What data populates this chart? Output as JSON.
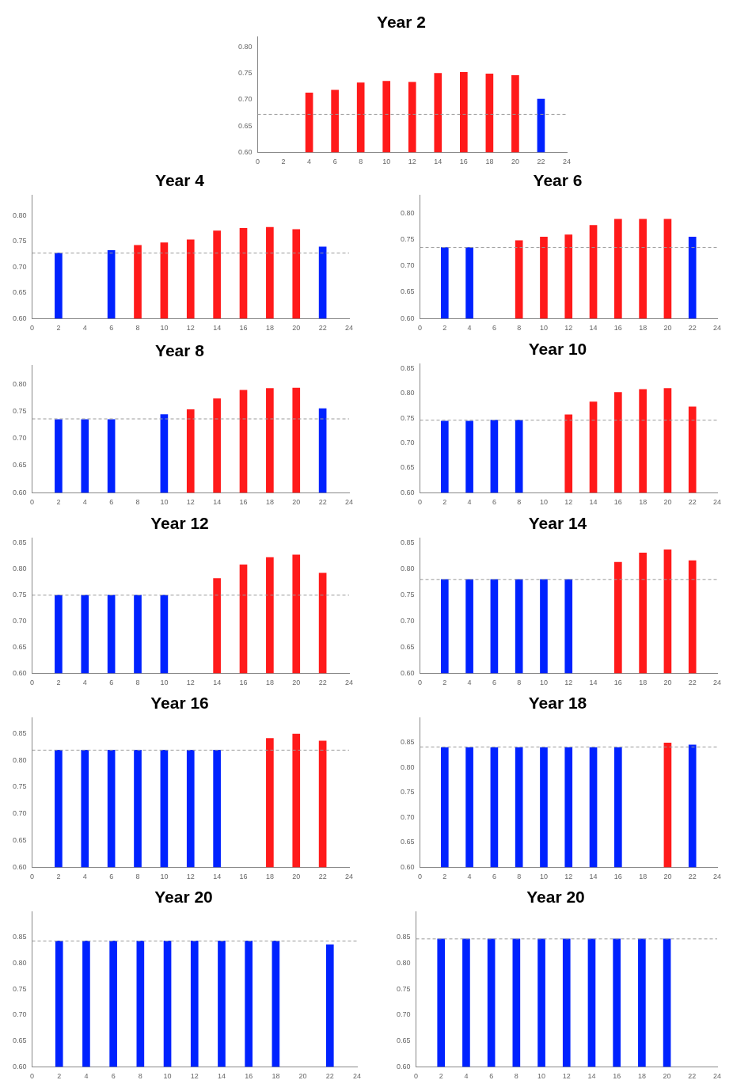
{
  "chart_data": [
    {
      "type": "bar",
      "title": "Year 2",
      "x": [
        4,
        6,
        8,
        10,
        12,
        14,
        16,
        18,
        20,
        22
      ],
      "values": [
        0.713,
        0.718,
        0.732,
        0.735,
        0.733,
        0.75,
        0.752,
        0.749,
        0.746,
        0.701
      ],
      "colors": [
        "#ff1a1a",
        "#ff1a1a",
        "#ff1a1a",
        "#ff1a1a",
        "#ff1a1a",
        "#ff1a1a",
        "#ff1a1a",
        "#ff1a1a",
        "#ff1a1a",
        "#0022ff"
      ],
      "xlim": [
        0,
        24
      ],
      "xticks": [
        0,
        2,
        4,
        6,
        8,
        10,
        12,
        14,
        16,
        18,
        20,
        22,
        24
      ],
      "ylim": [
        0.6,
        0.82
      ],
      "yticks": [
        {
          "value": 0.6,
          "label": "0.60"
        },
        {
          "value": 0.65,
          "label": "0.65"
        },
        {
          "value": 0.7,
          "label": "0.70"
        },
        {
          "value": 0.75,
          "label": "0.75"
        },
        {
          "value": 0.8,
          "label": "0.80"
        }
      ],
      "ref_lines": [
        {
          "axis": "y",
          "value": 0.672,
          "color": "#999999",
          "line_style": "dashed"
        }
      ]
    },
    {
      "type": "bar",
      "title": "Year 4",
      "x": [
        2,
        6,
        8,
        10,
        12,
        14,
        16,
        18,
        20,
        22
      ],
      "values": [
        0.727,
        0.732,
        0.742,
        0.747,
        0.753,
        0.77,
        0.775,
        0.777,
        0.773,
        0.739
      ],
      "colors": [
        "#0022ff",
        "#0022ff",
        "#ff1a1a",
        "#ff1a1a",
        "#ff1a1a",
        "#ff1a1a",
        "#ff1a1a",
        "#ff1a1a",
        "#ff1a1a",
        "#0022ff"
      ],
      "xlim": [
        0,
        24
      ],
      "xticks": [
        0,
        2,
        4,
        6,
        8,
        10,
        12,
        14,
        16,
        18,
        20,
        22,
        24
      ],
      "ylim": [
        0.6,
        0.84
      ],
      "yticks": [
        {
          "value": 0.6,
          "label": "0.60"
        },
        {
          "value": 0.65,
          "label": "0.65"
        },
        {
          "value": 0.7,
          "label": "0.70"
        },
        {
          "value": 0.75,
          "label": "0.75"
        },
        {
          "value": 0.8,
          "label": "0.80"
        }
      ],
      "ref_lines": [
        {
          "axis": "y",
          "value": 0.727,
          "color": "#999999",
          "line_style": "dashed"
        }
      ]
    },
    {
      "type": "bar",
      "title": "Year 6",
      "x": [
        2,
        4,
        8,
        10,
        12,
        14,
        16,
        18,
        20,
        22
      ],
      "values": [
        0.735,
        0.735,
        0.748,
        0.755,
        0.759,
        0.777,
        0.789,
        0.789,
        0.789,
        0.755
      ],
      "colors": [
        "#0022ff",
        "#0022ff",
        "#ff1a1a",
        "#ff1a1a",
        "#ff1a1a",
        "#ff1a1a",
        "#ff1a1a",
        "#ff1a1a",
        "#ff1a1a",
        "#0022ff"
      ],
      "xlim": [
        0,
        24
      ],
      "xticks": [
        0,
        2,
        4,
        6,
        8,
        10,
        12,
        14,
        16,
        18,
        20,
        22,
        24
      ],
      "ylim": [
        0.6,
        0.835
      ],
      "yticks": [
        {
          "value": 0.6,
          "label": "0.60"
        },
        {
          "value": 0.65,
          "label": "0.65"
        },
        {
          "value": 0.7,
          "label": "0.70"
        },
        {
          "value": 0.75,
          "label": "0.75"
        },
        {
          "value": 0.8,
          "label": "0.80"
        }
      ],
      "ref_lines": [
        {
          "axis": "y",
          "value": 0.735,
          "color": "#999999",
          "line_style": "dashed"
        }
      ]
    },
    {
      "type": "bar",
      "title": "Year 8",
      "x": [
        2,
        4,
        6,
        10,
        12,
        14,
        16,
        18,
        20,
        22
      ],
      "values": [
        0.735,
        0.735,
        0.735,
        0.744,
        0.753,
        0.773,
        0.789,
        0.792,
        0.793,
        0.755
      ],
      "colors": [
        "#0022ff",
        "#0022ff",
        "#0022ff",
        "#0022ff",
        "#ff1a1a",
        "#ff1a1a",
        "#ff1a1a",
        "#ff1a1a",
        "#ff1a1a",
        "#0022ff"
      ],
      "xlim": [
        0,
        24
      ],
      "xticks": [
        0,
        2,
        4,
        6,
        8,
        10,
        12,
        14,
        16,
        18,
        20,
        22,
        24
      ],
      "ylim": [
        0.6,
        0.835
      ],
      "yticks": [
        {
          "value": 0.6,
          "label": "0.60"
        },
        {
          "value": 0.65,
          "label": "0.65"
        },
        {
          "value": 0.7,
          "label": "0.70"
        },
        {
          "value": 0.75,
          "label": "0.75"
        },
        {
          "value": 0.8,
          "label": "0.80"
        }
      ],
      "ref_lines": [
        {
          "axis": "y",
          "value": 0.736,
          "color": "#999999",
          "line_style": "dashed"
        }
      ]
    },
    {
      "type": "bar",
      "title": "Year 10",
      "x": [
        2,
        4,
        6,
        8,
        12,
        14,
        16,
        18,
        20,
        22
      ],
      "values": [
        0.744,
        0.744,
        0.746,
        0.746,
        0.757,
        0.783,
        0.802,
        0.808,
        0.81,
        0.773
      ],
      "colors": [
        "#0022ff",
        "#0022ff",
        "#0022ff",
        "#0022ff",
        "#ff1a1a",
        "#ff1a1a",
        "#ff1a1a",
        "#ff1a1a",
        "#ff1a1a",
        "#ff1a1a"
      ],
      "xlim": [
        0,
        24
      ],
      "xticks": [
        0,
        2,
        4,
        6,
        8,
        10,
        12,
        14,
        16,
        18,
        20,
        22,
        24
      ],
      "ylim": [
        0.6,
        0.86
      ],
      "yticks": [
        {
          "value": 0.6,
          "label": "0.60"
        },
        {
          "value": 0.65,
          "label": "0.65"
        },
        {
          "value": 0.7,
          "label": "0.70"
        },
        {
          "value": 0.75,
          "label": "0.75"
        },
        {
          "value": 0.8,
          "label": "0.80"
        },
        {
          "value": 0.85,
          "label": "0.85"
        }
      ],
      "ref_lines": [
        {
          "axis": "y",
          "value": 0.746,
          "color": "#999999",
          "line_style": "dashed"
        }
      ]
    },
    {
      "type": "bar",
      "title": "Year 12",
      "x": [
        2,
        4,
        6,
        8,
        10,
        14,
        16,
        18,
        20,
        22
      ],
      "values": [
        0.75,
        0.75,
        0.75,
        0.75,
        0.75,
        0.782,
        0.808,
        0.822,
        0.827,
        0.792
      ],
      "colors": [
        "#0022ff",
        "#0022ff",
        "#0022ff",
        "#0022ff",
        "#0022ff",
        "#ff1a1a",
        "#ff1a1a",
        "#ff1a1a",
        "#ff1a1a",
        "#ff1a1a"
      ],
      "xlim": [
        0,
        24
      ],
      "xticks": [
        0,
        2,
        4,
        6,
        8,
        10,
        12,
        14,
        16,
        18,
        20,
        22,
        24
      ],
      "ylim": [
        0.6,
        0.86
      ],
      "yticks": [
        {
          "value": 0.6,
          "label": "0.60"
        },
        {
          "value": 0.65,
          "label": "0.65"
        },
        {
          "value": 0.7,
          "label": "0.70"
        },
        {
          "value": 0.75,
          "label": "0.75"
        },
        {
          "value": 0.8,
          "label": "0.80"
        },
        {
          "value": 0.85,
          "label": "0.85"
        }
      ],
      "ref_lines": [
        {
          "axis": "y",
          "value": 0.75,
          "color": "#999999",
          "line_style": "dashed"
        }
      ]
    },
    {
      "type": "bar",
      "title": "Year 14",
      "x": [
        2,
        4,
        6,
        8,
        10,
        12,
        16,
        18,
        20,
        22
      ],
      "values": [
        0.78,
        0.78,
        0.78,
        0.78,
        0.78,
        0.78,
        0.813,
        0.831,
        0.837,
        0.816
      ],
      "colors": [
        "#0022ff",
        "#0022ff",
        "#0022ff",
        "#0022ff",
        "#0022ff",
        "#0022ff",
        "#ff1a1a",
        "#ff1a1a",
        "#ff1a1a",
        "#ff1a1a"
      ],
      "xlim": [
        0,
        24
      ],
      "xticks": [
        0,
        2,
        4,
        6,
        8,
        10,
        12,
        14,
        16,
        18,
        20,
        22,
        24
      ],
      "ylim": [
        0.6,
        0.86
      ],
      "yticks": [
        {
          "value": 0.6,
          "label": "0.60"
        },
        {
          "value": 0.65,
          "label": "0.65"
        },
        {
          "value": 0.7,
          "label": "0.70"
        },
        {
          "value": 0.75,
          "label": "0.75"
        },
        {
          "value": 0.8,
          "label": "0.80"
        },
        {
          "value": 0.85,
          "label": "0.85"
        }
      ],
      "ref_lines": [
        {
          "axis": "y",
          "value": 0.78,
          "color": "#999999",
          "line_style": "dashed"
        }
      ]
    },
    {
      "type": "bar",
      "title": "Year 16",
      "x": [
        2,
        4,
        6,
        8,
        10,
        12,
        14,
        18,
        20,
        22
      ],
      "values": [
        0.819,
        0.819,
        0.819,
        0.819,
        0.819,
        0.819,
        0.819,
        0.841,
        0.849,
        0.836
      ],
      "colors": [
        "#0022ff",
        "#0022ff",
        "#0022ff",
        "#0022ff",
        "#0022ff",
        "#0022ff",
        "#0022ff",
        "#ff1a1a",
        "#ff1a1a",
        "#ff1a1a"
      ],
      "xlim": [
        0,
        24
      ],
      "xticks": [
        0,
        2,
        4,
        6,
        8,
        10,
        12,
        14,
        16,
        18,
        20,
        22,
        24
      ],
      "ylim": [
        0.6,
        0.88
      ],
      "yticks": [
        {
          "value": 0.6,
          "label": "0.60"
        },
        {
          "value": 0.65,
          "label": "0.65"
        },
        {
          "value": 0.7,
          "label": "0.70"
        },
        {
          "value": 0.75,
          "label": "0.75"
        },
        {
          "value": 0.8,
          "label": "0.80"
        },
        {
          "value": 0.85,
          "label": "0.85"
        }
      ],
      "ref_lines": [
        {
          "axis": "y",
          "value": 0.819,
          "color": "#999999",
          "line_style": "dashed"
        }
      ]
    },
    {
      "type": "bar",
      "title": "Year 18",
      "x": [
        2,
        4,
        6,
        8,
        10,
        12,
        14,
        16,
        20,
        22
      ],
      "values": [
        0.84,
        0.84,
        0.84,
        0.84,
        0.84,
        0.84,
        0.84,
        0.84,
        0.849,
        0.845
      ],
      "colors": [
        "#0022ff",
        "#0022ff",
        "#0022ff",
        "#0022ff",
        "#0022ff",
        "#0022ff",
        "#0022ff",
        "#0022ff",
        "#ff1a1a",
        "#0022ff"
      ],
      "xlim": [
        0,
        24
      ],
      "xticks": [
        0,
        2,
        4,
        6,
        8,
        10,
        12,
        14,
        16,
        18,
        20,
        22,
        24
      ],
      "ylim": [
        0.6,
        0.9
      ],
      "yticks": [
        {
          "value": 0.6,
          "label": "0.60"
        },
        {
          "value": 0.65,
          "label": "0.65"
        },
        {
          "value": 0.7,
          "label": "0.70"
        },
        {
          "value": 0.75,
          "label": "0.75"
        },
        {
          "value": 0.8,
          "label": "0.80"
        },
        {
          "value": 0.85,
          "label": "0.85"
        }
      ],
      "ref_lines": [
        {
          "axis": "y",
          "value": 0.841,
          "color": "#999999",
          "line_style": "dashed"
        }
      ]
    },
    {
      "type": "bar",
      "title": "Year 20",
      "x": [
        2,
        4,
        6,
        8,
        10,
        12,
        14,
        16,
        18,
        22
      ],
      "values": [
        0.843,
        0.843,
        0.843,
        0.843,
        0.843,
        0.843,
        0.843,
        0.843,
        0.843,
        0.836
      ],
      "colors": [
        "#0022ff",
        "#0022ff",
        "#0022ff",
        "#0022ff",
        "#0022ff",
        "#0022ff",
        "#0022ff",
        "#0022ff",
        "#0022ff",
        "#0022ff"
      ],
      "xlim": [
        0,
        24
      ],
      "xticks": [
        0,
        2,
        4,
        6,
        8,
        10,
        12,
        14,
        16,
        18,
        20,
        22,
        24
      ],
      "ylim": [
        0.6,
        0.9
      ],
      "yticks": [
        {
          "value": 0.6,
          "label": "0.60"
        },
        {
          "value": 0.65,
          "label": "0.65"
        },
        {
          "value": 0.7,
          "label": "0.70"
        },
        {
          "value": 0.75,
          "label": "0.75"
        },
        {
          "value": 0.8,
          "label": "0.80"
        },
        {
          "value": 0.85,
          "label": "0.85"
        }
      ],
      "ref_lines": [
        {
          "axis": "y",
          "value": 0.843,
          "color": "#999999",
          "line_style": "dashed"
        }
      ]
    },
    {
      "type": "bar",
      "title": "Year 20",
      "x": [
        2,
        4,
        6,
        8,
        10,
        12,
        14,
        16,
        18,
        20
      ],
      "values": [
        0.847,
        0.847,
        0.847,
        0.847,
        0.847,
        0.847,
        0.847,
        0.847,
        0.847,
        0.847
      ],
      "colors": [
        "#0022ff",
        "#0022ff",
        "#0022ff",
        "#0022ff",
        "#0022ff",
        "#0022ff",
        "#0022ff",
        "#0022ff",
        "#0022ff",
        "#0022ff"
      ],
      "xlim": [
        0,
        24
      ],
      "xticks": [
        0,
        2,
        4,
        6,
        8,
        10,
        12,
        14,
        16,
        18,
        20,
        22,
        24
      ],
      "ylim": [
        0.6,
        0.9
      ],
      "yticks": [
        {
          "value": 0.6,
          "label": "0.60"
        },
        {
          "value": 0.65,
          "label": "0.65"
        },
        {
          "value": 0.7,
          "label": "0.70"
        },
        {
          "value": 0.75,
          "label": "0.75"
        },
        {
          "value": 0.8,
          "label": "0.80"
        },
        {
          "value": 0.85,
          "label": "0.85"
        }
      ],
      "ref_lines": [
        {
          "axis": "y",
          "value": 0.847,
          "color": "#999999",
          "line_style": "dashed"
        }
      ]
    }
  ]
}
